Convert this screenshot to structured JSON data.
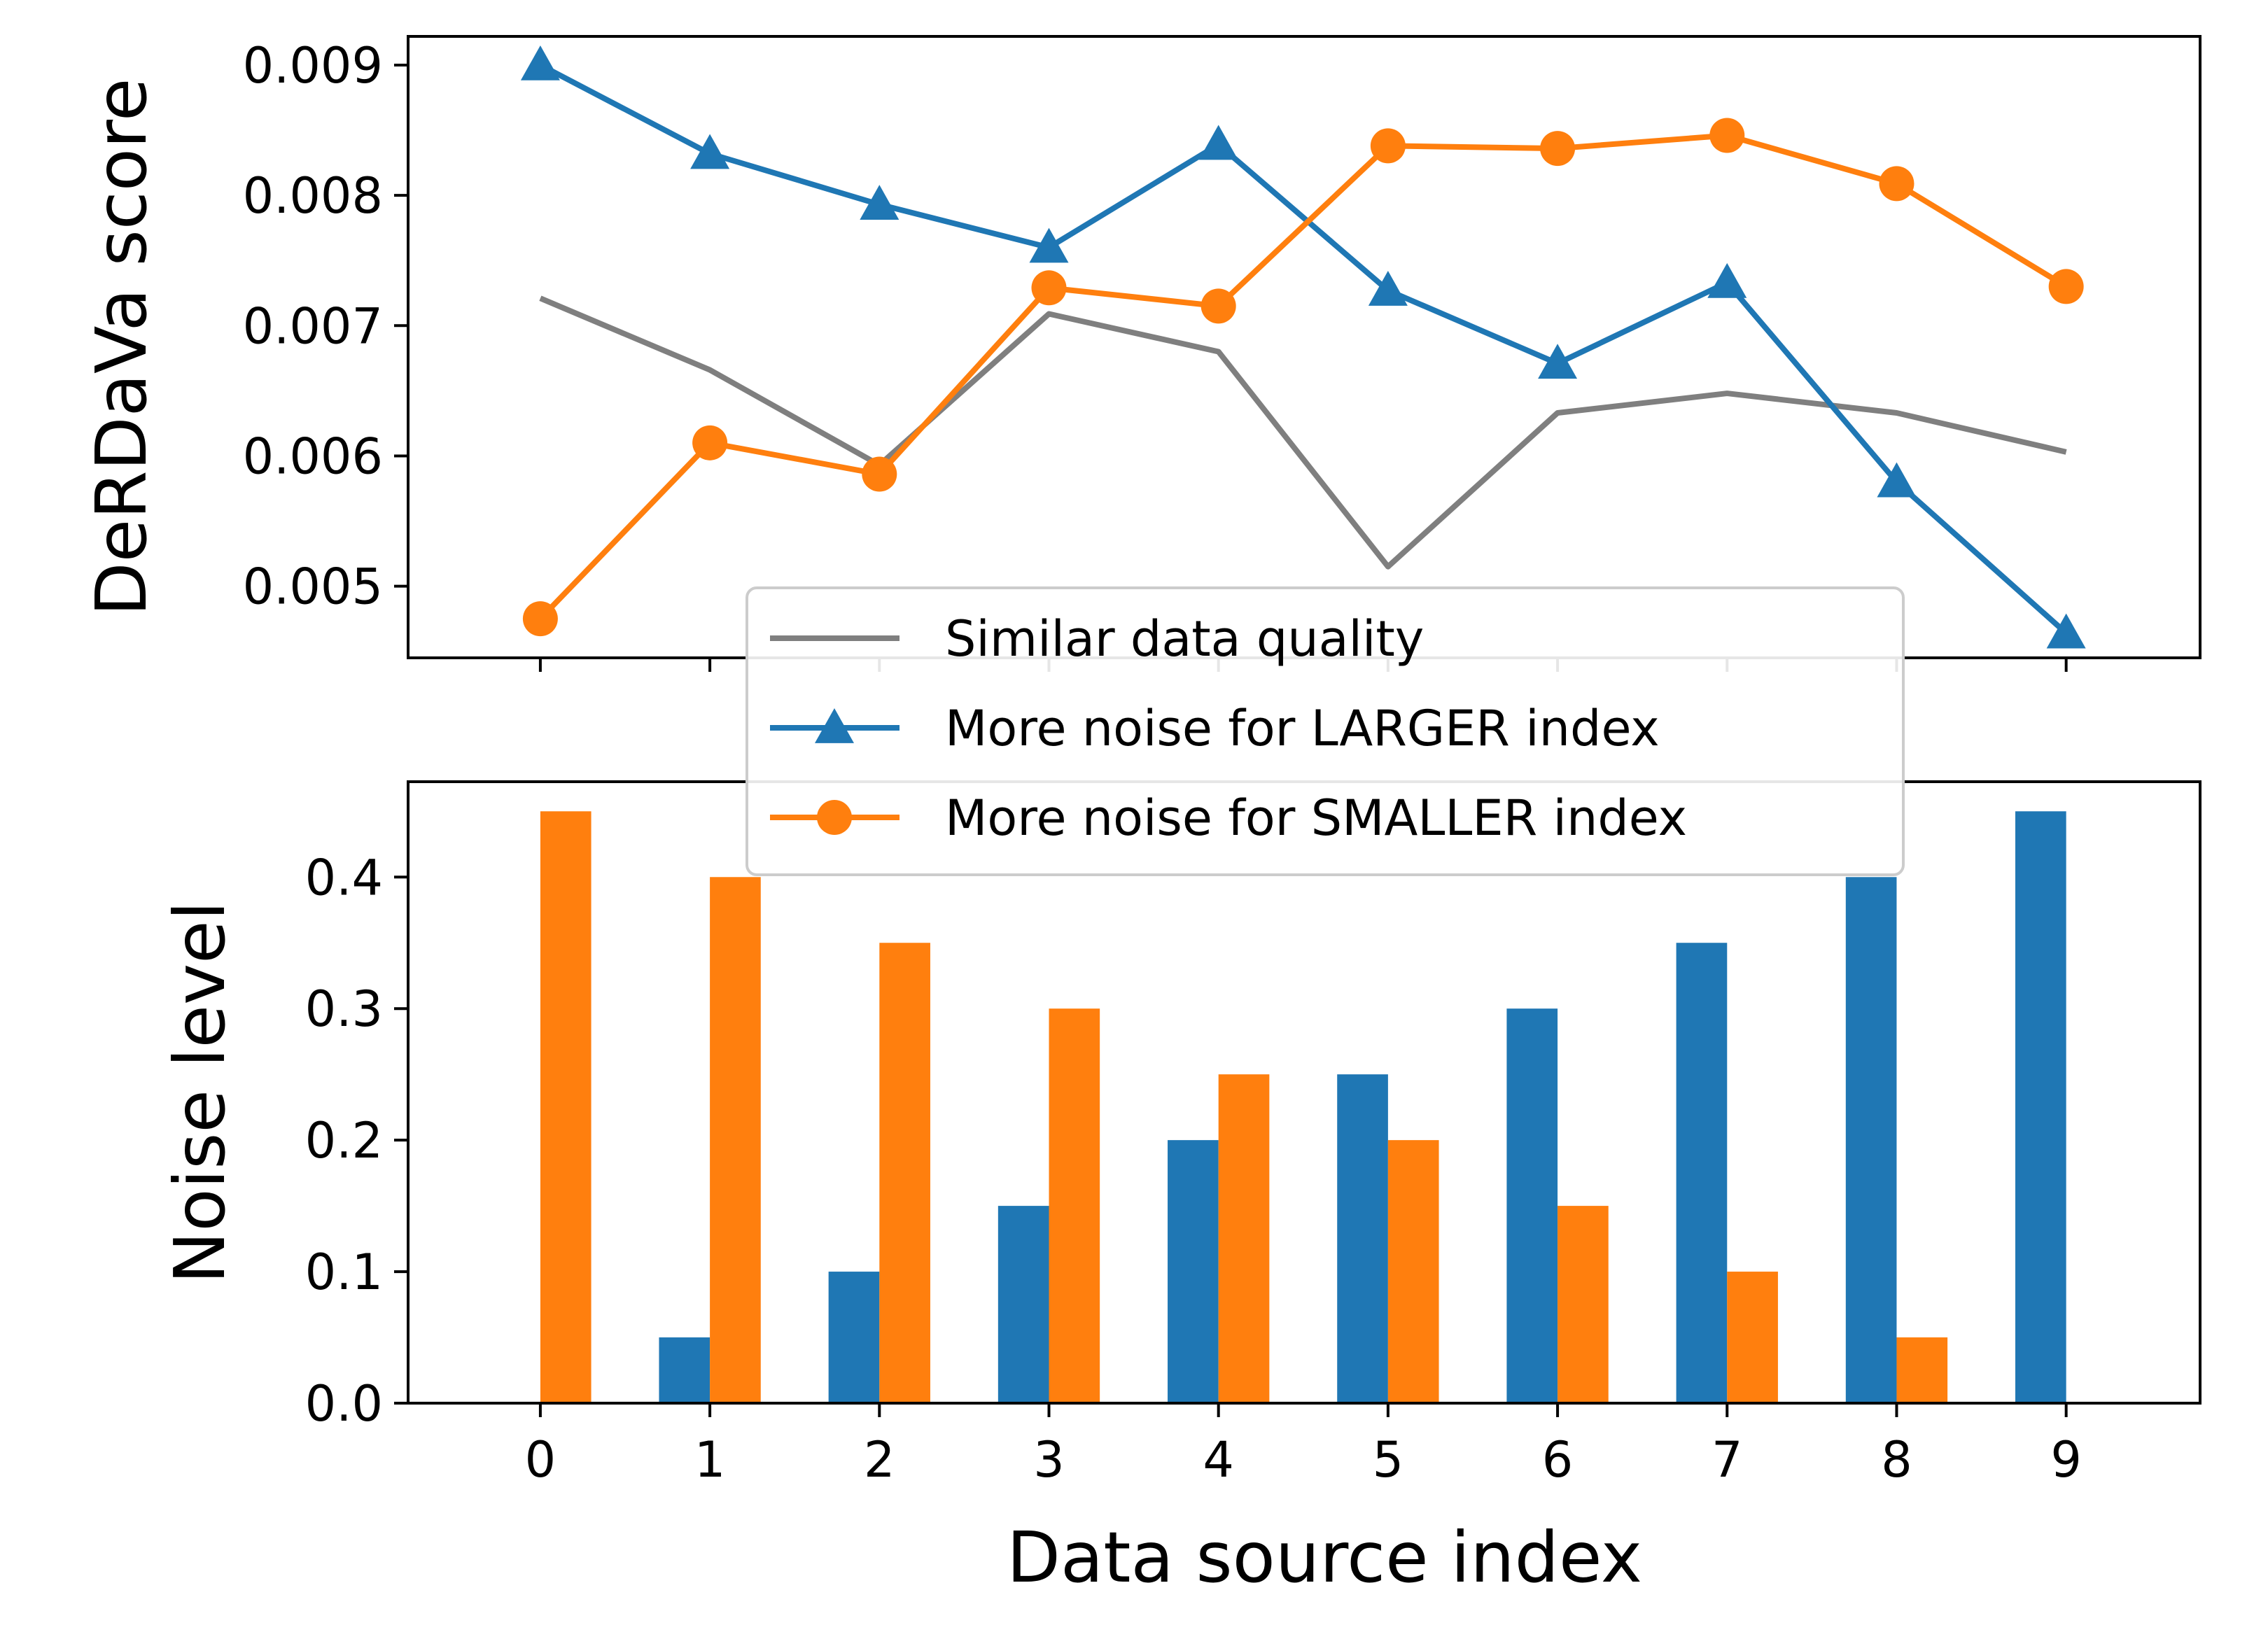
{
  "chart_data": [
    {
      "type": "line",
      "panel": "top",
      "title": "",
      "xlabel": "",
      "ylabel": "DeRDaVa score",
      "x": [
        0,
        1,
        2,
        3,
        4,
        5,
        6,
        7,
        8,
        9
      ],
      "ylim": [
        0.00445,
        0.00922
      ],
      "yticks": [
        0.005,
        0.006,
        0.007,
        0.008,
        0.009
      ],
      "ytick_labels": [
        "0.005",
        "0.006",
        "0.007",
        "0.008",
        "0.009"
      ],
      "grid": false,
      "series": [
        {
          "name": "Similar data quality",
          "color": "#7f7f7f",
          "marker": "none",
          "values": [
            0.00721,
            0.00666,
            0.00593,
            0.00709,
            0.0068,
            0.00515,
            0.00633,
            0.00648,
            0.00633,
            0.00603
          ]
        },
        {
          "name": "More noise for LARGER index",
          "color": "#1f77b4",
          "marker": "triangle",
          "values": [
            0.009,
            0.00832,
            0.00793,
            0.0076,
            0.00839,
            0.00727,
            0.00671,
            0.00733,
            0.0058,
            0.00464
          ]
        },
        {
          "name": "More noise for SMALLER index",
          "color": "#ff7f0e",
          "marker": "circle",
          "values": [
            0.00475,
            0.0061,
            0.00586,
            0.00729,
            0.00715,
            0.00838,
            0.00836,
            0.00846,
            0.00809,
            0.0073
          ]
        }
      ],
      "legend": {
        "position": "bottom-center",
        "entries": [
          "Similar data quality",
          "More noise for LARGER index",
          "More noise for SMALLER index"
        ]
      }
    },
    {
      "type": "bar",
      "panel": "bottom",
      "title": "",
      "xlabel": "Data source index",
      "ylabel": "Noise level",
      "categories": [
        "0",
        "1",
        "2",
        "3",
        "4",
        "5",
        "6",
        "7",
        "8",
        "9"
      ],
      "ylim": [
        0.0,
        0.4725
      ],
      "yticks": [
        0.0,
        0.1,
        0.2,
        0.3,
        0.4
      ],
      "ytick_labels": [
        "0.0",
        "0.1",
        "0.2",
        "0.3",
        "0.4"
      ],
      "grid": false,
      "series": [
        {
          "name": "More noise for LARGER index",
          "color": "#1f77b4",
          "values": [
            0.0,
            0.05,
            0.1,
            0.15,
            0.2,
            0.25,
            0.3,
            0.35,
            0.4,
            0.45
          ]
        },
        {
          "name": "More noise for SMALLER index",
          "color": "#ff7f0e",
          "values": [
            0.45,
            0.4,
            0.35,
            0.3,
            0.25,
            0.2,
            0.15,
            0.1,
            0.05,
            0.0
          ]
        }
      ]
    }
  ]
}
